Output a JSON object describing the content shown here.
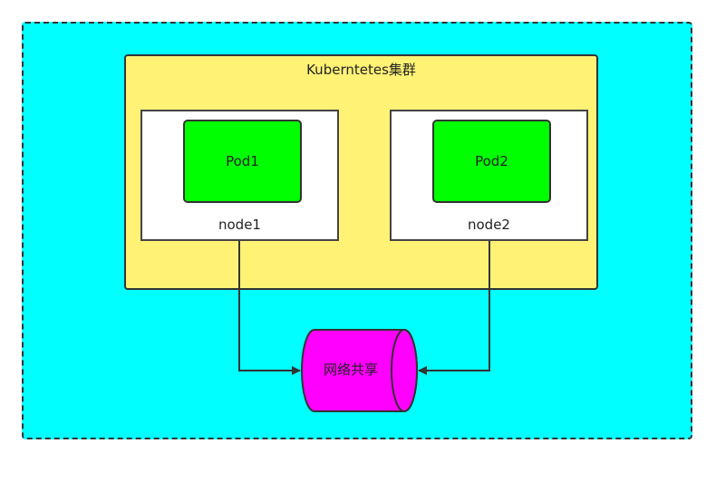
{
  "cluster": {
    "title": "Kuberntetes集群"
  },
  "nodes": [
    {
      "label": "node1",
      "pod": "Pod1"
    },
    {
      "label": "node2",
      "pod": "Pod2"
    }
  ],
  "network": {
    "label": "网络共享"
  },
  "colors": {
    "outer_bg": "#00ffff",
    "cluster_bg": "#fff275",
    "node_bg": "#ffffff",
    "pod_bg": "#00ff00",
    "network_bg": "#ff00ff",
    "stroke": "#333333"
  }
}
